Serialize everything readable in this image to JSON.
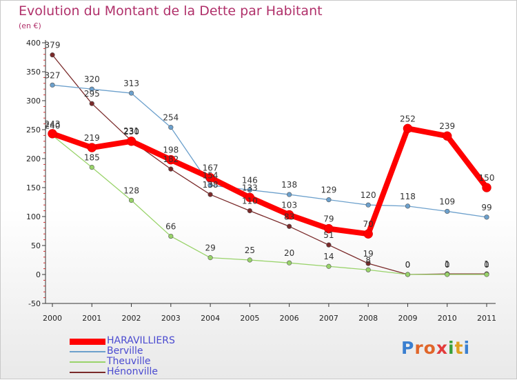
{
  "header": {
    "title": "Evolution du Montant de la Dette par Habitant",
    "subtitle": "(en €)"
  },
  "logo": {
    "text": "Proxiti"
  },
  "chart_data": {
    "type": "line",
    "title": "Evolution du Montant de la Dette par Habitant",
    "ylabel": "(en €)",
    "xlabel": "",
    "x": [
      "2000",
      "2001",
      "2002",
      "2003",
      "2004",
      "2005",
      "2006",
      "2007",
      "2008",
      "2009",
      "2010",
      "2011"
    ],
    "ylim": [
      -50,
      400
    ],
    "yticks": [
      -50,
      0,
      50,
      100,
      150,
      200,
      250,
      300,
      350,
      400
    ],
    "grid": false,
    "legend_position": "bottom-left",
    "series": [
      {
        "name": "HARAVILLIERS",
        "color": "#ff0000",
        "values": [
          243,
          219,
          230,
          198,
          167,
          133,
          103,
          79,
          70,
          252,
          239,
          150
        ],
        "labels": [
          "243",
          "219",
          "230",
          "198",
          "167",
          "133",
          "103",
          "79",
          "70",
          "252",
          "239",
          "150"
        ]
      },
      {
        "name": "Berville",
        "color": "#6ca0cc",
        "values": [
          327,
          320,
          313,
          254,
          154,
          146,
          138,
          129,
          120,
          118,
          109,
          99
        ],
        "labels": [
          "327",
          "320",
          "313",
          "254",
          "154",
          "146",
          "138",
          "129",
          "120",
          "118",
          "109",
          "99"
        ]
      },
      {
        "name": "Theuville",
        "color": "#99d36a",
        "values": [
          240,
          185,
          128,
          66,
          29,
          25,
          20,
          14,
          8,
          0,
          0,
          0
        ],
        "labels": [
          "240",
          "185",
          "128",
          "66",
          "29",
          "25",
          "20",
          "14",
          "8",
          "0",
          "0",
          "0"
        ]
      },
      {
        "name": "Hénonville",
        "color": "#7a2a2a",
        "values": [
          379,
          295,
          231,
          182,
          138,
          110,
          83,
          51,
          19,
          0,
          1,
          1
        ],
        "labels": [
          "379",
          "295",
          "231",
          "182",
          "138",
          "110",
          "83",
          "51",
          "19",
          "0",
          "1",
          "1"
        ]
      }
    ]
  }
}
